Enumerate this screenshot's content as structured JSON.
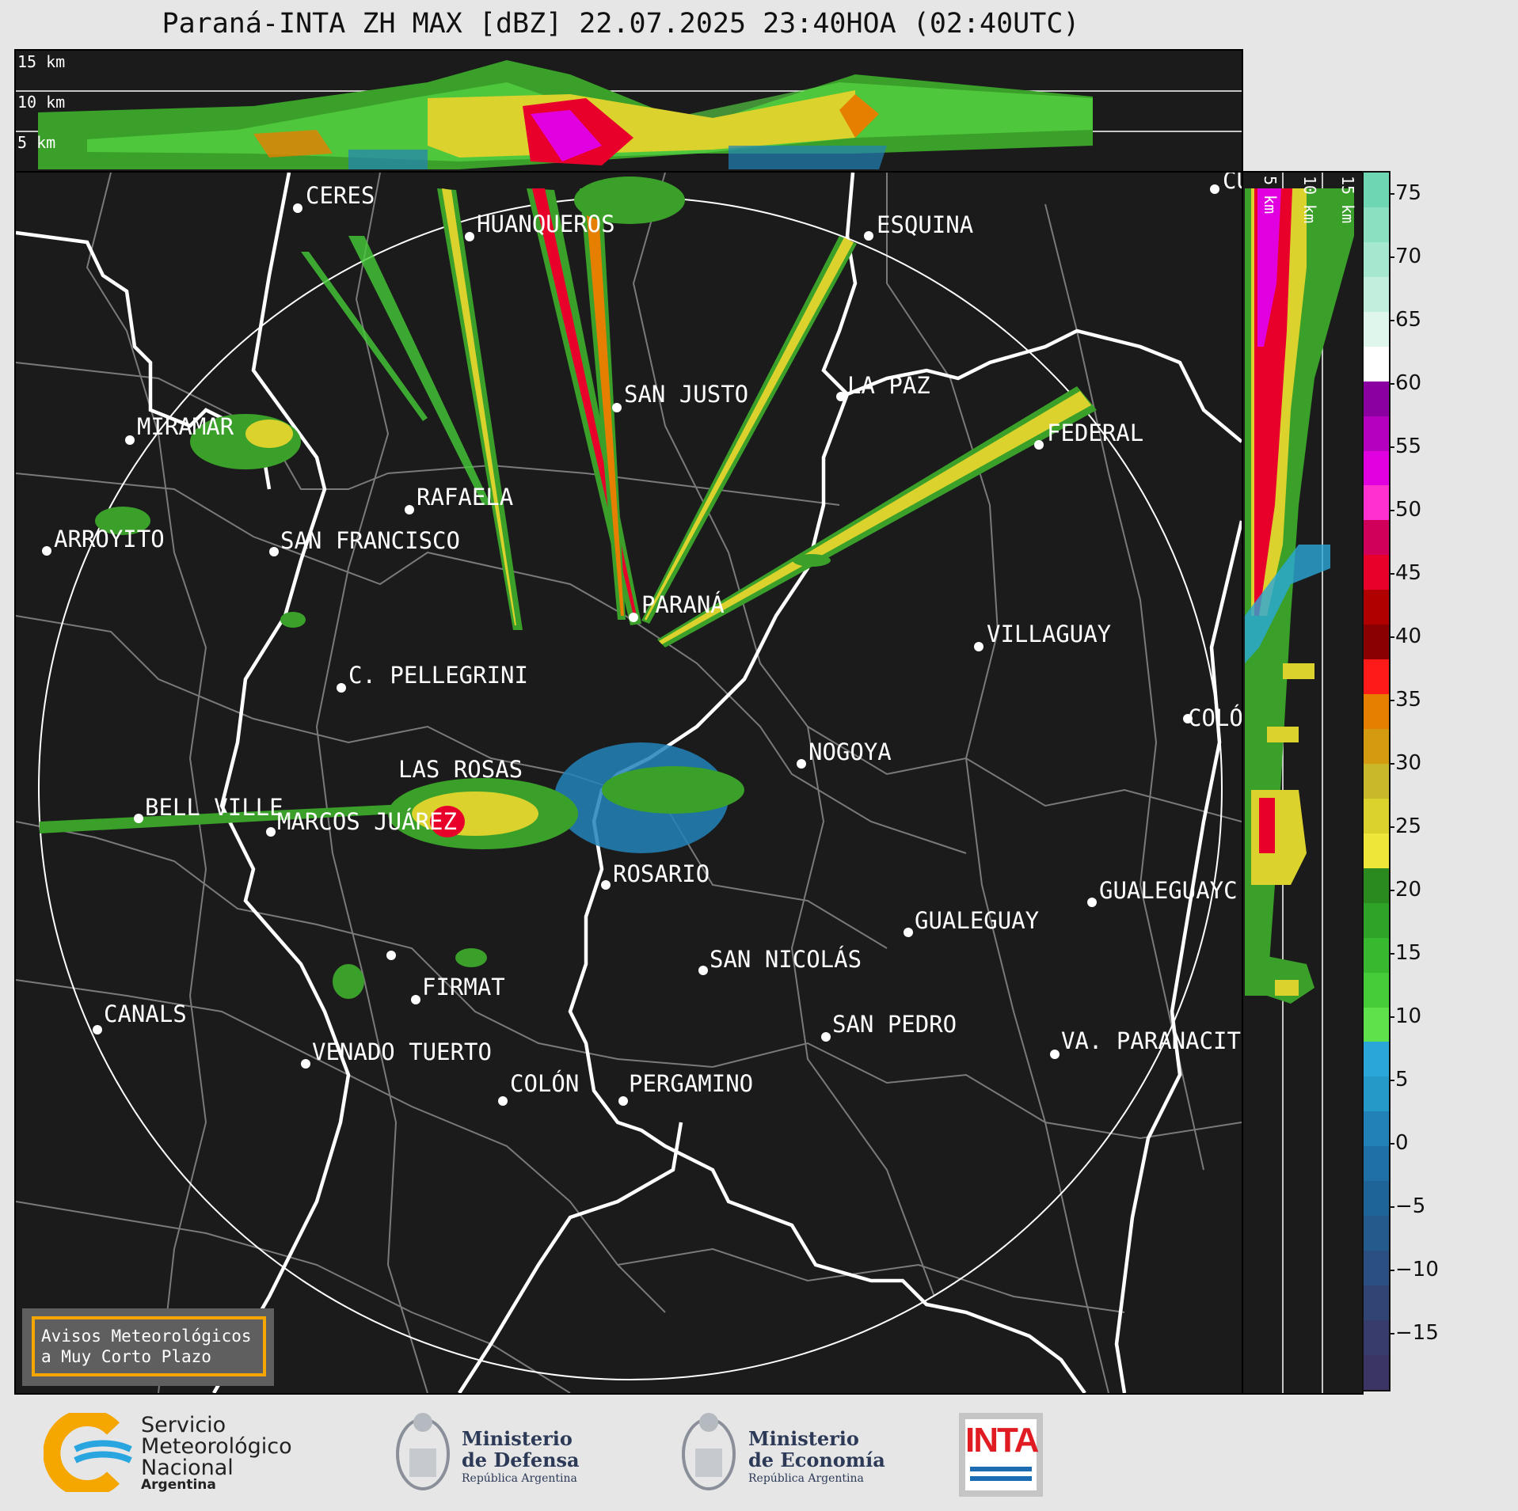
{
  "title": "Paraná-INTA ZH MAX [dBZ] 22.07.2025 23:40HOA (02:40UTC)",
  "top_panel": {
    "km_labels": [
      "15 km",
      "10 km",
      "5 km"
    ]
  },
  "side_panel": {
    "km_labels": [
      "5 km",
      "10 km",
      "15 km"
    ]
  },
  "colorbar": {
    "ticks": [
      "75",
      "70",
      "65",
      "60",
      "55",
      "50",
      "45",
      "40",
      "35",
      "30",
      "25",
      "20",
      "15",
      "10",
      "5",
      "0",
      "−5",
      "−10",
      "−15"
    ],
    "colors": [
      "#6fd6b4",
      "#8ae0c0",
      "#a6e8cf",
      "#c2efdd",
      "#def6ec",
      "#ffffff",
      "#8a00a0",
      "#b500c0",
      "#e000e0",
      "#ff2fd0",
      "#d0005a",
      "#e8002a",
      "#b00000",
      "#8a0000",
      "#ff1a1a",
      "#e67e00",
      "#d49a10",
      "#c8b82a",
      "#dcd22e",
      "#eee73a",
      "#2a8a1f",
      "#2fa228",
      "#38b82f",
      "#45cc38",
      "#5ee14a",
      "#2aa7d8",
      "#259ac8",
      "#2282b8",
      "#2070a8",
      "#1f6498",
      "#255a8c",
      "#2b4f80",
      "#314574",
      "#373c6c",
      "#3a3564"
    ]
  },
  "cities": [
    {
      "name": "CERES"
    },
    {
      "name": "HUANQUEROS"
    },
    {
      "name": "ESQUINA"
    },
    {
      "name": "CU"
    },
    {
      "name": "SAN JUSTO"
    },
    {
      "name": "LA PAZ"
    },
    {
      "name": "MIRAMAR"
    },
    {
      "name": "FEDERAL"
    },
    {
      "name": "RAFAELA"
    },
    {
      "name": "ARROYITO"
    },
    {
      "name": "SAN FRANCISCO"
    },
    {
      "name": "PARANÁ"
    },
    {
      "name": "VILLAGUAY"
    },
    {
      "name": "C. PELLEGRINI"
    },
    {
      "name": "COLÓ"
    },
    {
      "name": "NOGOYA"
    },
    {
      "name": "LAS ROSAS"
    },
    {
      "name": "BELL VILLE"
    },
    {
      "name": "MARCOS JUÁREZ"
    },
    {
      "name": "ROSARIO"
    },
    {
      "name": "GUALEGUAYC"
    },
    {
      "name": "GUALEGUAY"
    },
    {
      "name": "SAN NICOLÁS"
    },
    {
      "name": "FIRMAT"
    },
    {
      "name": "CANALS"
    },
    {
      "name": "SAN PEDRO"
    },
    {
      "name": "VENADO TUERTO"
    },
    {
      "name": "VA. PARANACIT"
    },
    {
      "name": "COLÓN"
    },
    {
      "name": "PERGAMINO"
    }
  ],
  "avisos": {
    "line1": "Avisos Meteorológicos",
    "line2": "a Muy Corto Plazo"
  },
  "logos": {
    "smn": {
      "line1": "Servicio",
      "line2": "Meteorológico",
      "line3": "Nacional",
      "line4": "Argentina"
    },
    "defensa": {
      "line1": "Ministerio",
      "line2": "de Defensa",
      "line3": "República Argentina"
    },
    "economia": {
      "line1": "Ministerio",
      "line2": "de Economía",
      "line3": "República Argentina"
    },
    "inta": {
      "text": "INTA"
    }
  }
}
